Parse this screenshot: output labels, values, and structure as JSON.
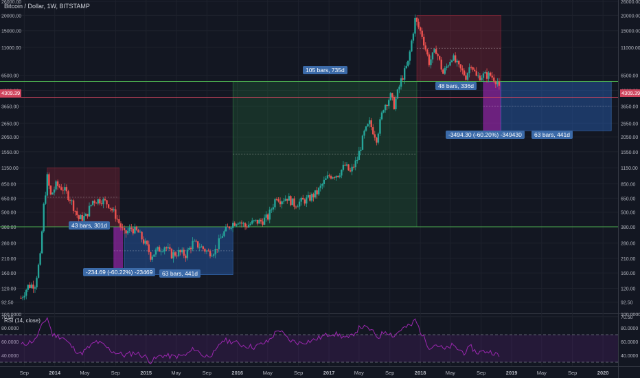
{
  "header": {
    "title": "Bitcoin / Dollar, 1W, BITSTAMP"
  },
  "rsi": {
    "title": "RSI (14, close)",
    "upper": 70,
    "lower": 30
  },
  "annotations": {
    "left_drop_bars": "43 bars, 301d",
    "left_drop_change": "-234.69 (-60.22%) -23469",
    "left_range_bars": "63 bars, 441d",
    "mid_rise_bars": "105 bars, 735d",
    "right_drop_bars": "48 bars, 336d",
    "right_drop_change": "-3494.30 (-60.20%) -349430",
    "right_range_bars": "63 bars, 441d"
  },
  "current_price": "4309.39",
  "colors": {
    "background": "#131722",
    "up": "#26a69a",
    "down": "#ef5350",
    "support": "#4caf50",
    "rsi": "#9c27b0"
  },
  "chart_data": [
    {
      "type": "candlestick",
      "title": "Bitcoin / Dollar, 1W, BITSTAMP",
      "scale": "log",
      "ylim": [
        75,
        26000
      ],
      "y_ticks": [
        "26000.00",
        "20000.00",
        "15000.00",
        "11000.00",
        "6500.00",
        "4900.00",
        "3650.00",
        "2650.00",
        "2050.00",
        "1550.00",
        "1150.00",
        "850.00",
        "650.00",
        "500.00",
        "380.00",
        "280.00",
        "210.00",
        "160.00",
        "120.00",
        "92.50",
        "70.50"
      ],
      "x_ticks": [
        "Sep",
        "2014",
        "May",
        "Sep",
        "2015",
        "May",
        "Sep",
        "2016",
        "May",
        "Sep",
        "2017",
        "May",
        "Sep",
        "2018",
        "May",
        "Sep",
        "2019",
        "May",
        "Sep",
        "2020"
      ],
      "x_range": [
        "2013-08",
        "2020-03"
      ],
      "series": [
        {
          "values": [
            [
              "2013-08-19",
              100
            ],
            [
              "2013-09-16",
              125
            ],
            [
              "2013-10-14",
              130
            ],
            [
              "2013-11-04",
              215
            ],
            [
              "2013-11-18",
              560
            ],
            [
              "2013-12-02",
              960
            ],
            [
              "2013-12-16",
              680
            ],
            [
              "2014-01-06",
              830
            ],
            [
              "2014-02-03",
              780
            ],
            [
              "2014-03-03",
              650
            ],
            [
              "2014-04-07",
              440
            ],
            [
              "2014-05-05",
              460
            ],
            [
              "2014-06-02",
              620
            ],
            [
              "2014-07-07",
              630
            ],
            [
              "2014-08-04",
              580
            ],
            [
              "2014-09-01",
              470
            ],
            [
              "2014-10-06",
              330
            ],
            [
              "2014-11-03",
              370
            ],
            [
              "2014-12-01",
              340
            ],
            [
              "2015-01-05",
              260
            ],
            [
              "2015-01-19",
              220
            ],
            [
              "2015-02-16",
              245
            ],
            [
              "2015-03-16",
              265
            ],
            [
              "2015-04-13",
              225
            ],
            [
              "2015-05-11",
              235
            ],
            [
              "2015-06-08",
              225
            ],
            [
              "2015-07-06",
              280
            ],
            [
              "2015-08-03",
              265
            ],
            [
              "2015-09-07",
              235
            ],
            [
              "2015-10-05",
              245
            ],
            [
              "2015-11-02",
              330
            ],
            [
              "2015-12-07",
              400
            ],
            [
              "2016-01-04",
              430
            ],
            [
              "2016-02-01",
              385
            ],
            [
              "2016-03-07",
              415
            ],
            [
              "2016-04-04",
              420
            ],
            [
              "2016-05-02",
              455
            ],
            [
              "2016-06-06",
              680
            ],
            [
              "2016-06-20",
              630
            ],
            [
              "2016-07-18",
              660
            ],
            [
              "2016-08-15",
              580
            ],
            [
              "2016-09-12",
              610
            ],
            [
              "2016-10-10",
              640
            ],
            [
              "2016-11-14",
              720
            ],
            [
              "2016-12-12",
              880
            ],
            [
              "2017-01-02",
              990
            ],
            [
              "2017-02-06",
              1020
            ],
            [
              "2017-03-06",
              1200
            ],
            [
              "2017-03-27",
              1050
            ],
            [
              "2017-04-24",
              1350
            ],
            [
              "2017-05-22",
              2200
            ],
            [
              "2017-06-12",
              2650
            ],
            [
              "2017-07-10",
              2000
            ],
            [
              "2017-08-07",
              3600
            ],
            [
              "2017-09-04",
              4400
            ],
            [
              "2017-09-18",
              3700
            ],
            [
              "2017-10-16",
              5900
            ],
            [
              "2017-11-13",
              8200
            ],
            [
              "2017-12-11",
              18500
            ],
            [
              "2018-01-08",
              13800
            ],
            [
              "2018-02-05",
              8300
            ],
            [
              "2018-03-05",
              10500
            ],
            [
              "2018-04-02",
              6700
            ],
            [
              "2018-05-07",
              9300
            ],
            [
              "2018-06-04",
              7500
            ],
            [
              "2018-07-02",
              6400
            ],
            [
              "2018-07-23",
              8200
            ],
            [
              "2018-08-13",
              6300
            ],
            [
              "2018-09-10",
              6500
            ],
            [
              "2018-10-08",
              6500
            ],
            [
              "2018-11-05",
              5800
            ],
            [
              "2018-11-19",
              4309.39
            ]
          ]
        }
      ],
      "horizontal_lines": [
        {
          "name": "support",
          "value": 380
        },
        {
          "name": "resistance",
          "value": 5800
        },
        {
          "name": "current",
          "value": 4309.39
        }
      ],
      "zones": [
        {
          "kind": "drop",
          "x": [
            "2013-12-02",
            "2014-09-15"
          ],
          "y": [
            380,
            1150
          ]
        },
        {
          "kind": "change",
          "x": [
            "2014-08-25",
            "2014-09-29"
          ],
          "y": [
            155,
            380
          ]
        },
        {
          "kind": "range",
          "x": [
            "2014-10-06",
            "2015-12-14"
          ],
          "y": [
            155,
            380
          ]
        },
        {
          "kind": "rise",
          "x": [
            "2015-12-14",
            "2017-12-18"
          ],
          "y": [
            380,
            5800
          ]
        },
        {
          "kind": "drop",
          "x": [
            "2017-12-18",
            "2018-11-19"
          ],
          "y": [
            5800,
            20000
          ]
        },
        {
          "kind": "change",
          "x": [
            "2018-09-10",
            "2018-11-19"
          ],
          "y": [
            2300,
            5800
          ]
        },
        {
          "kind": "range",
          "x": [
            "2018-11-19",
            "2020-02-03"
          ],
          "y": [
            2300,
            5800
          ]
        }
      ]
    },
    {
      "type": "line",
      "title": "RSI (14, close)",
      "ylim": [
        25,
        100
      ],
      "y_ticks": [
        "100.0000",
        "80.0000",
        "60.0000",
        "40.0000"
      ],
      "series": [
        {
          "values": [
            [
              "2013-08-19",
              55
            ],
            [
              "2013-10-14",
              62
            ],
            [
              "2013-11-18",
              88
            ],
            [
              "2013-12-02",
              95
            ],
            [
              "2013-12-23",
              70
            ],
            [
              "2014-02-03",
              66
            ],
            [
              "2014-03-17",
              50
            ],
            [
              "2014-04-14",
              42
            ],
            [
              "2014-05-19",
              52
            ],
            [
              "2014-06-16",
              60
            ],
            [
              "2014-07-14",
              55
            ],
            [
              "2014-08-18",
              46
            ],
            [
              "2014-10-06",
              40
            ],
            [
              "2014-11-17",
              44
            ],
            [
              "2014-12-29",
              38
            ],
            [
              "2015-01-19",
              31
            ],
            [
              "2015-03-02",
              40
            ],
            [
              "2015-04-20",
              38
            ],
            [
              "2015-06-08",
              40
            ],
            [
              "2015-07-13",
              50
            ],
            [
              "2015-08-24",
              38
            ],
            [
              "2015-10-05",
              44
            ],
            [
              "2015-11-02",
              62
            ],
            [
              "2015-12-14",
              60
            ],
            [
              "2016-01-18",
              55
            ],
            [
              "2016-03-07",
              52
            ],
            [
              "2016-05-02",
              60
            ],
            [
              "2016-06-13",
              78
            ],
            [
              "2016-07-25",
              62
            ],
            [
              "2016-09-05",
              58
            ],
            [
              "2016-10-31",
              62
            ],
            [
              "2016-12-12",
              68
            ],
            [
              "2017-01-09",
              72
            ],
            [
              "2017-02-06",
              70
            ],
            [
              "2017-03-20",
              64
            ],
            [
              "2017-05-08",
              82
            ],
            [
              "2017-06-12",
              78
            ],
            [
              "2017-07-17",
              66
            ],
            [
              "2017-08-14",
              76
            ],
            [
              "2017-09-18",
              68
            ],
            [
              "2017-10-16",
              78
            ],
            [
              "2017-11-27",
              84
            ],
            [
              "2017-12-11",
              92
            ],
            [
              "2018-01-08",
              70
            ],
            [
              "2018-02-05",
              52
            ],
            [
              "2018-03-05",
              56
            ],
            [
              "2018-04-09",
              48
            ],
            [
              "2018-05-07",
              54
            ],
            [
              "2018-06-25",
              44
            ],
            [
              "2018-07-23",
              52
            ],
            [
              "2018-08-13",
              44
            ],
            [
              "2018-09-24",
              46
            ],
            [
              "2018-10-22",
              44
            ],
            [
              "2018-11-19",
              36
            ]
          ]
        }
      ]
    }
  ]
}
